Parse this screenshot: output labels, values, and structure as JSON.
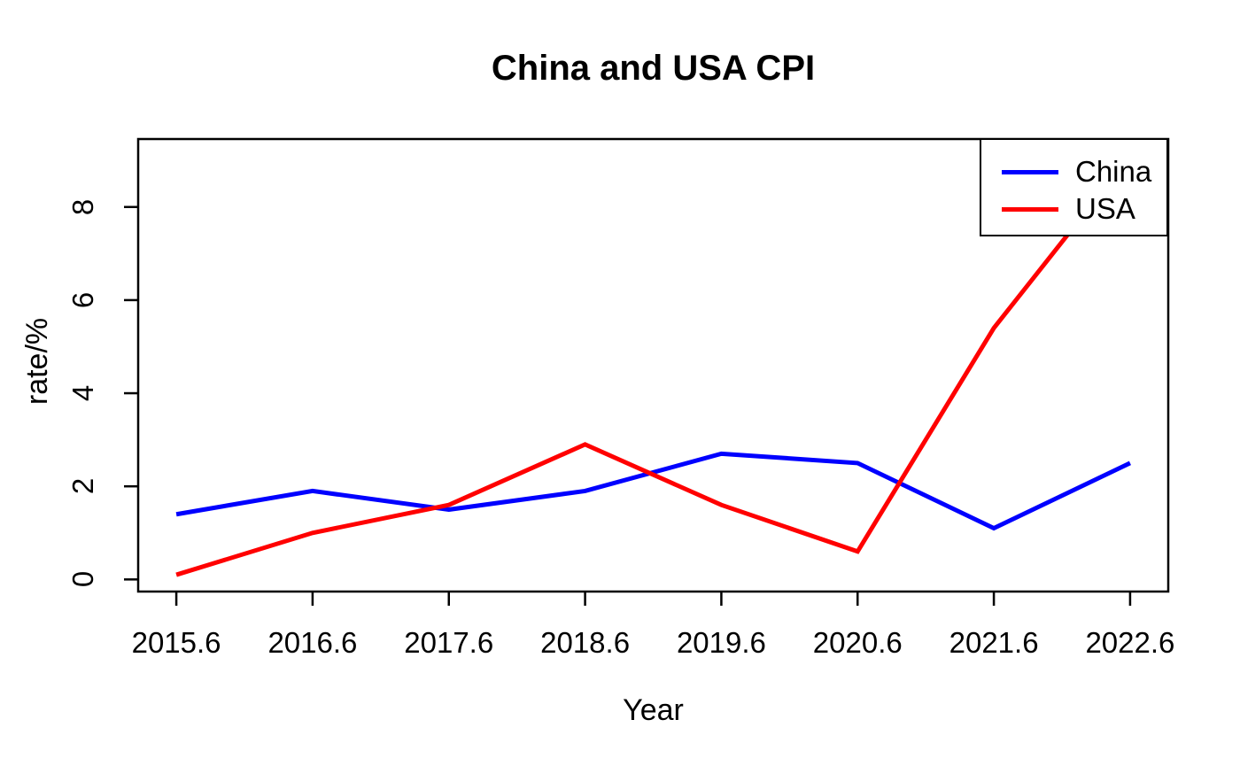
{
  "chart_data": {
    "type": "line",
    "title": "China and USA CPI",
    "xlabel": "Year",
    "ylabel": "rate/%",
    "x": [
      2015.6,
      2016.6,
      2017.6,
      2018.6,
      2019.6,
      2020.6,
      2021.6,
      2022.6
    ],
    "series": [
      {
        "name": "China",
        "color": "#0000FF",
        "values": [
          1.4,
          1.9,
          1.5,
          1.9,
          2.7,
          2.5,
          1.1,
          2.5
        ]
      },
      {
        "name": "USA",
        "color": "#FF0000",
        "values": [
          0.1,
          1.0,
          1.6,
          2.9,
          1.6,
          0.6,
          5.4,
          9.1
        ]
      }
    ],
    "x_ticks": [
      2015.6,
      2016.6,
      2017.6,
      2018.6,
      2019.6,
      2020.6,
      2021.6,
      2022.6
    ],
    "x_tick_labels": [
      "2015.6",
      "2016.6",
      "2017.6",
      "2018.6",
      "2019.6",
      "2020.6",
      "2021.6",
      "2022.6"
    ],
    "y_ticks": [
      0,
      2,
      4,
      6,
      8
    ],
    "y_tick_labels": [
      "0",
      "2",
      "4",
      "6",
      "8"
    ],
    "xlim": [
      2015.32,
      2022.88
    ],
    "ylim": [
      -0.26,
      9.46
    ],
    "grid": false,
    "legend_position": "topright",
    "axis_color": "#000000",
    "background_color": "#FFFFFF"
  }
}
